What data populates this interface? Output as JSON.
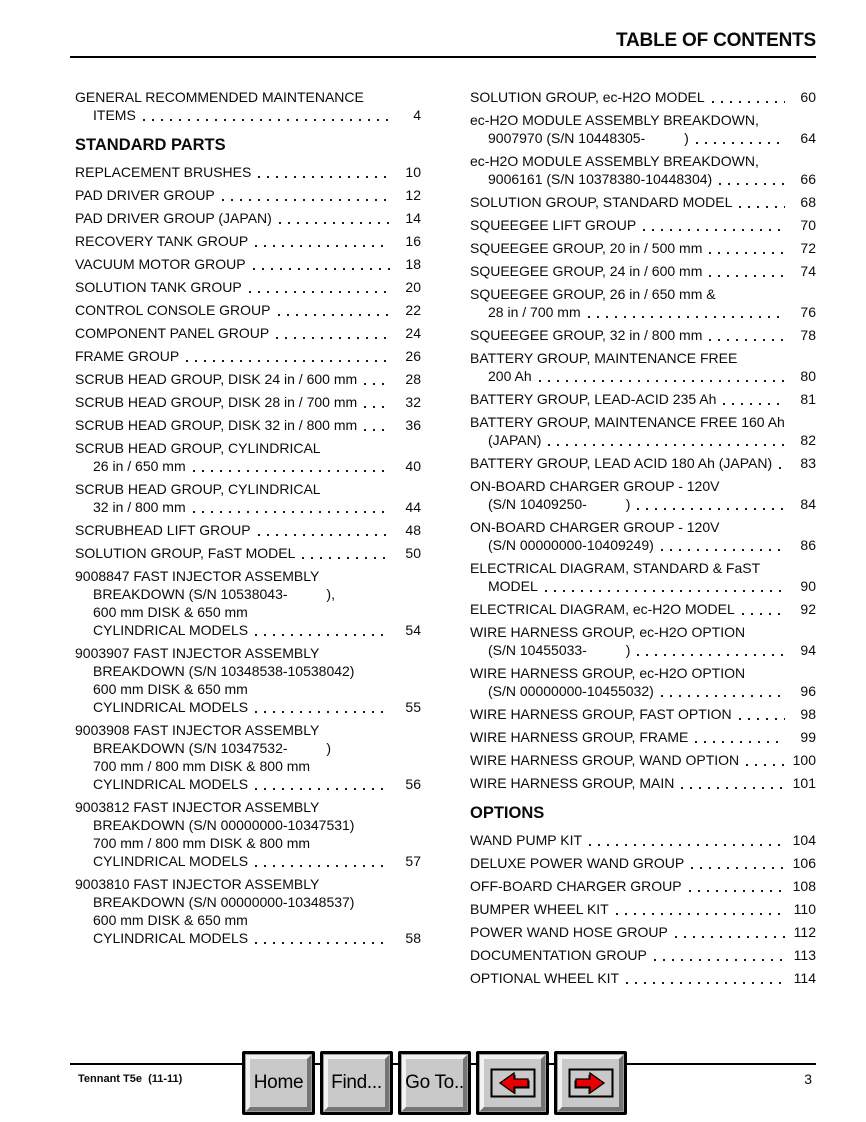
{
  "header": {
    "title": "TABLE OF CONTENTS"
  },
  "toc": {
    "left": [
      {
        "lines": [
          "GENERAL RECOMMENDED MAINTENANCE",
          "ITEMS"
        ],
        "page": "4"
      },
      {
        "heading": "STANDARD PARTS"
      },
      {
        "lines": [
          "REPLACEMENT BRUSHES"
        ],
        "page": "10"
      },
      {
        "lines": [
          "PAD DRIVER GROUP"
        ],
        "page": "12"
      },
      {
        "lines": [
          "PAD DRIVER GROUP (JAPAN)"
        ],
        "page": "14"
      },
      {
        "lines": [
          "RECOVERY TANK GROUP"
        ],
        "page": "16"
      },
      {
        "lines": [
          "VACUUM MOTOR GROUP"
        ],
        "page": "18"
      },
      {
        "lines": [
          "SOLUTION TANK GROUP"
        ],
        "page": "20"
      },
      {
        "lines": [
          "CONTROL CONSOLE GROUP"
        ],
        "page": "22"
      },
      {
        "lines": [
          "COMPONENT PANEL GROUP"
        ],
        "page": "24"
      },
      {
        "lines": [
          "FRAME GROUP"
        ],
        "page": "26"
      },
      {
        "lines": [
          "SCRUB HEAD GROUP, DISK 24 in / 600 mm"
        ],
        "page": "28"
      },
      {
        "lines": [
          "SCRUB HEAD GROUP, DISK 28 in / 700 mm"
        ],
        "page": "32"
      },
      {
        "lines": [
          "SCRUB HEAD GROUP, DISK 32 in / 800 mm"
        ],
        "page": "36"
      },
      {
        "lines": [
          "SCRUB HEAD GROUP, CYLINDRICAL",
          "26 in / 650 mm"
        ],
        "page": "40"
      },
      {
        "lines": [
          "SCRUB HEAD GROUP, CYLINDRICAL",
          "32 in / 800 mm"
        ],
        "page": "44"
      },
      {
        "lines": [
          "SCRUBHEAD LIFT GROUP"
        ],
        "page": "48"
      },
      {
        "lines": [
          "SOLUTION GROUP, FaST MODEL"
        ],
        "page": "50"
      },
      {
        "lines": [
          "9008847 FAST INJECTOR ASSEMBLY",
          "BREAKDOWN (S/N 10538043-          ),",
          "600 mm DISK & 650 mm",
          "CYLINDRICAL MODELS"
        ],
        "page": "54"
      },
      {
        "lines": [
          "9003907 FAST INJECTOR ASSEMBLY",
          "BREAKDOWN (S/N 10348538-10538042)",
          "600 mm DISK & 650 mm",
          "CYLINDRICAL MODELS"
        ],
        "page": "55"
      },
      {
        "lines": [
          "9003908 FAST INJECTOR ASSEMBLY",
          "BREAKDOWN (S/N 10347532-          )",
          "700 mm / 800 mm DISK & 800 mm",
          "CYLINDRICAL MODELS"
        ],
        "page": "56"
      },
      {
        "lines": [
          "9003812 FAST INJECTOR ASSEMBLY",
          "BREAKDOWN (S/N 00000000-10347531)",
          "700 mm / 800 mm DISK & 800 mm",
          "CYLINDRICAL MODELS"
        ],
        "page": "57"
      },
      {
        "lines": [
          "9003810 FAST INJECTOR ASSEMBLY",
          "BREAKDOWN (S/N 00000000-10348537)",
          "600 mm DISK & 650 mm",
          "CYLINDRICAL MODELS"
        ],
        "page": "58"
      }
    ],
    "right": [
      {
        "lines": [
          "SOLUTION GROUP, ec-H2O MODEL"
        ],
        "page": "60"
      },
      {
        "lines": [
          "ec-H2O MODULE ASSEMBLY BREAKDOWN,",
          "9007970 (S/N 10448305-          )"
        ],
        "page": "64"
      },
      {
        "lines": [
          "ec-H2O MODULE ASSEMBLY BREAKDOWN,",
          "9006161 (S/N 10378380-10448304)"
        ],
        "page": "66"
      },
      {
        "lines": [
          "SOLUTION GROUP, STANDARD MODEL"
        ],
        "page": "68"
      },
      {
        "lines": [
          "SQUEEGEE LIFT GROUP"
        ],
        "page": "70"
      },
      {
        "lines": [
          "SQUEEGEE GROUP, 20 in / 500 mm"
        ],
        "page": "72"
      },
      {
        "lines": [
          "SQUEEGEE GROUP, 24 in / 600 mm"
        ],
        "page": "74"
      },
      {
        "lines": [
          "SQUEEGEE GROUP, 26 in / 650 mm &",
          "28 in / 700 mm"
        ],
        "page": "76"
      },
      {
        "lines": [
          "SQUEEGEE GROUP, 32 in / 800 mm"
        ],
        "page": "78"
      },
      {
        "lines": [
          "BATTERY GROUP, MAINTENANCE FREE",
          "200 Ah"
        ],
        "page": "80"
      },
      {
        "lines": [
          "BATTERY GROUP, LEAD-ACID 235 Ah"
        ],
        "page": "81"
      },
      {
        "lines": [
          "BATTERY GROUP, MAINTENANCE FREE 160 Ah",
          "(JAPAN)"
        ],
        "page": "82"
      },
      {
        "lines": [
          "BATTERY GROUP, LEAD ACID 180 Ah (JAPAN)"
        ],
        "page": "83"
      },
      {
        "lines": [
          "ON-BOARD CHARGER GROUP - 120V",
          "(S/N 10409250-          )"
        ],
        "page": "84"
      },
      {
        "lines": [
          "ON-BOARD CHARGER GROUP - 120V",
          "(S/N 00000000-10409249)"
        ],
        "page": "86"
      },
      {
        "lines": [
          "ELECTRICAL DIAGRAM, STANDARD & FaST",
          "MODEL"
        ],
        "page": "90"
      },
      {
        "lines": [
          "ELECTRICAL DIAGRAM, ec-H2O MODEL"
        ],
        "page": "92"
      },
      {
        "lines": [
          "WIRE HARNESS GROUP, ec-H2O OPTION",
          "(S/N 10455033-          )"
        ],
        "page": "94"
      },
      {
        "lines": [
          "WIRE HARNESS GROUP, ec-H2O OPTION",
          "(S/N 00000000-10455032)"
        ],
        "page": "96"
      },
      {
        "lines": [
          "WIRE HARNESS GROUP, FAST OPTION"
        ],
        "page": "98"
      },
      {
        "lines": [
          "WIRE HARNESS GROUP, FRAME"
        ],
        "page": "99"
      },
      {
        "lines": [
          "WIRE HARNESS GROUP, WAND OPTION"
        ],
        "page": "100"
      },
      {
        "lines": [
          "WIRE HARNESS GROUP, MAIN"
        ],
        "page": "101"
      },
      {
        "heading": "OPTIONS"
      },
      {
        "lines": [
          "WAND PUMP KIT"
        ],
        "page": "104"
      },
      {
        "lines": [
          "DELUXE POWER WAND GROUP"
        ],
        "page": "106"
      },
      {
        "lines": [
          "OFF-BOARD CHARGER GROUP"
        ],
        "page": "108"
      },
      {
        "lines": [
          "BUMPER WHEEL KIT"
        ],
        "page": "110"
      },
      {
        "lines": [
          "POWER WAND HOSE GROUP"
        ],
        "page": "112"
      },
      {
        "lines": [
          "DOCUMENTATION GROUP"
        ],
        "page": "113"
      },
      {
        "lines": [
          "OPTIONAL WHEEL KIT"
        ],
        "page": "114"
      }
    ]
  },
  "footer": {
    "doc_label": "Tennant T5e  (11-11)",
    "page_number": "3",
    "buttons": [
      {
        "name": "home",
        "label": "Home"
      },
      {
        "name": "find",
        "label": "Find..."
      },
      {
        "name": "goto",
        "label": "Go To.."
      },
      {
        "name": "back",
        "icon": "red-arrow-left-icon"
      },
      {
        "name": "forward",
        "icon": "red-arrow-right-icon"
      }
    ]
  },
  "colors": {
    "text": "#0a0a0a",
    "button_face": "#c9c9c9",
    "arrow_red": "#e80000"
  }
}
